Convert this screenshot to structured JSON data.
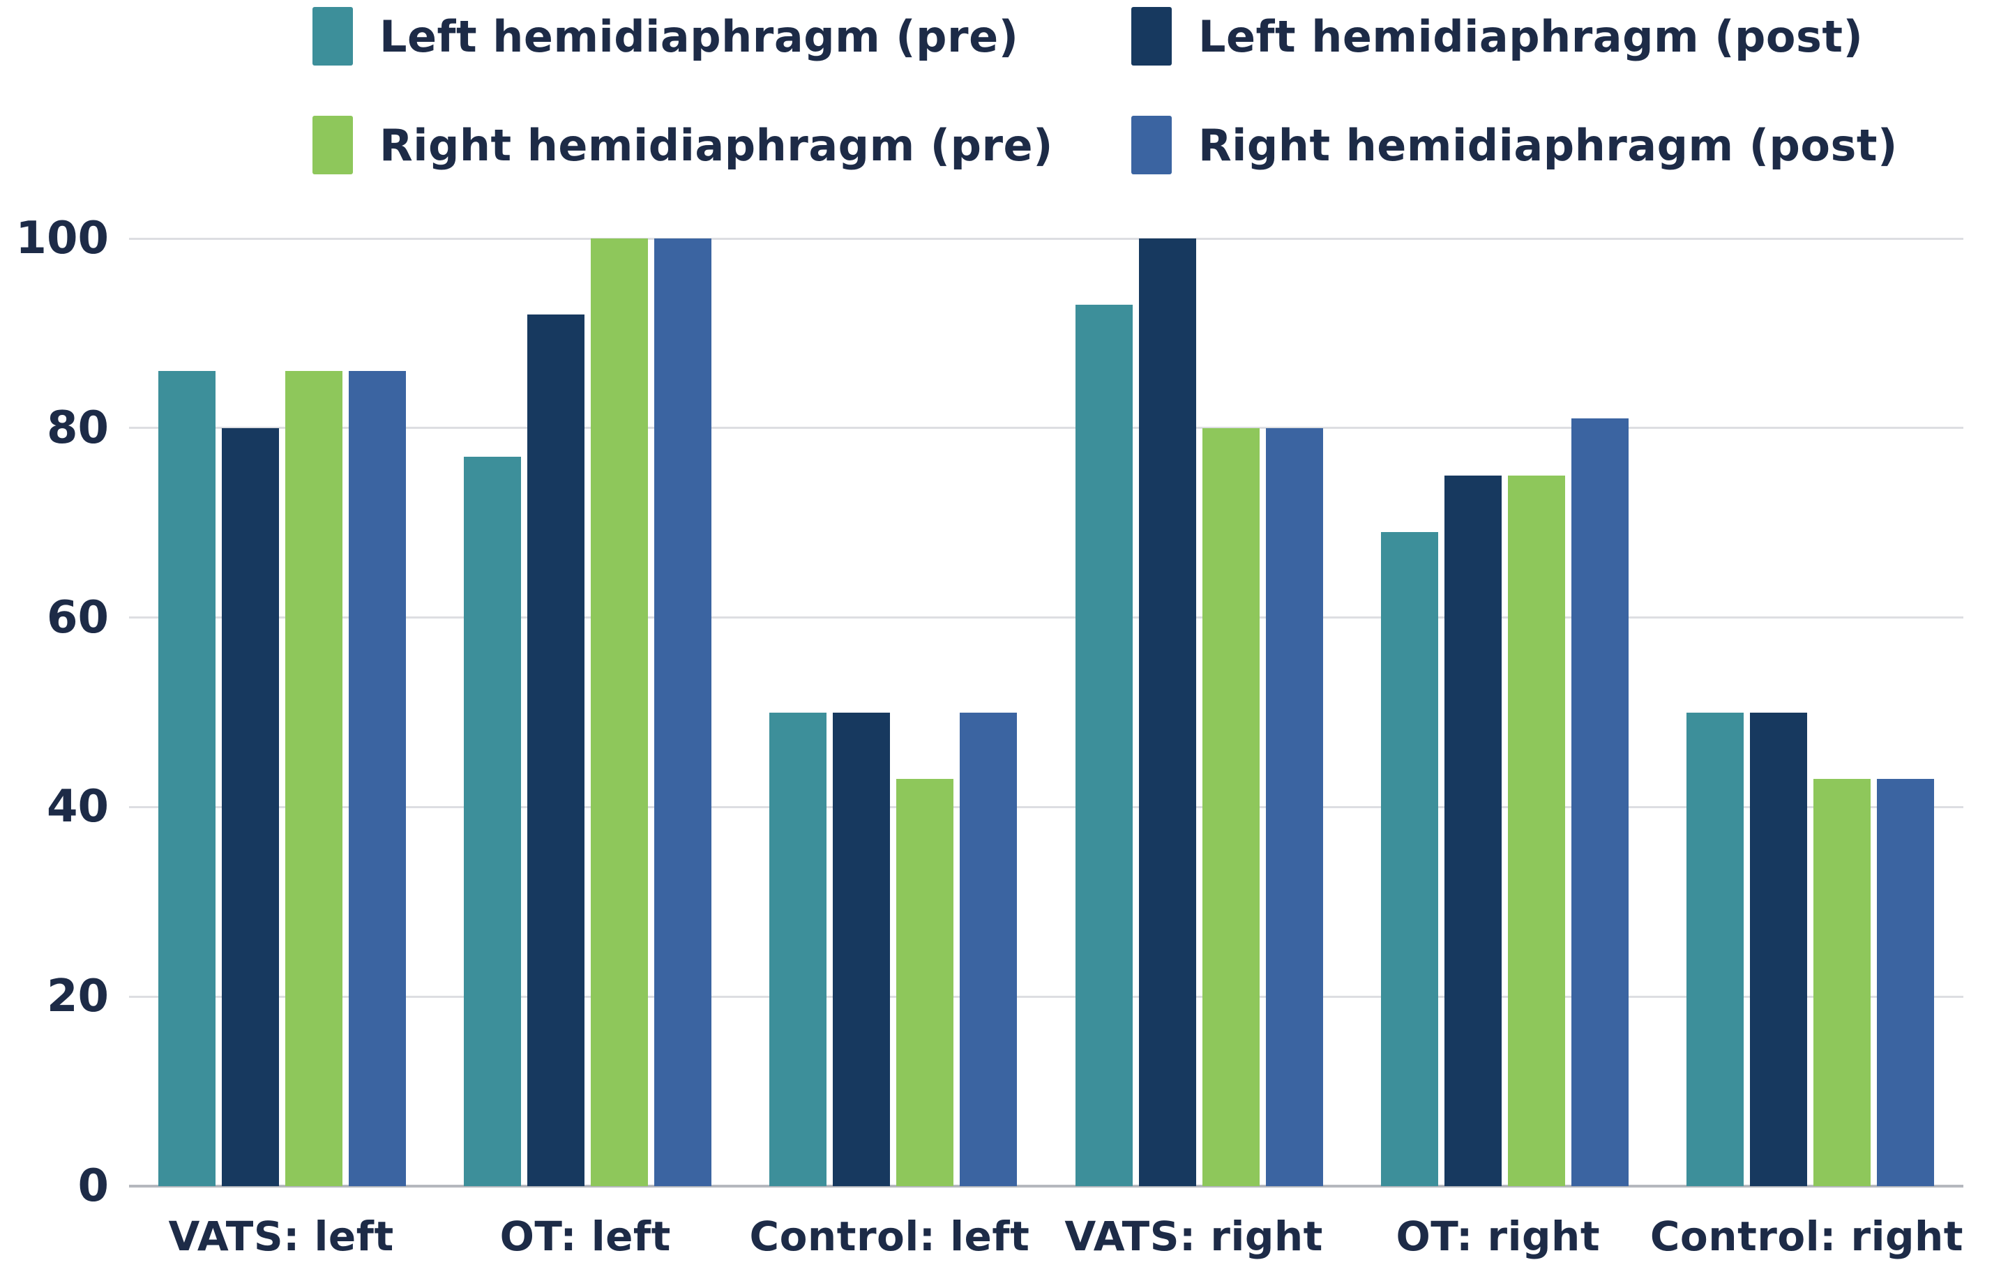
{
  "page": {
    "background": "#ffffff",
    "text_color": "#1d2b47",
    "gridline_color": "#dddee2",
    "baseline_color": "#b5b8be"
  },
  "chart_data": {
    "type": "bar",
    "title": "",
    "xlabel": "",
    "ylabel": "",
    "categories": [
      "VATS: left",
      "OT: left",
      "Control: left",
      "VATS: right",
      "OT: right",
      "Control: right"
    ],
    "series": [
      {
        "name": "Left hemidiaphragm (pre)",
        "color": "#3d8f9a",
        "values": [
          86,
          77,
          50,
          93,
          69,
          50
        ]
      },
      {
        "name": "Left hemidiaphragm (post)",
        "color": "#17395f",
        "values": [
          80,
          92,
          50,
          100,
          75,
          50
        ]
      },
      {
        "name": "Right hemidiaphragm (pre)",
        "color": "#8ec75b",
        "values": [
          86,
          100,
          43,
          80,
          75,
          43
        ]
      },
      {
        "name": "Right hemidiaphragm (post)",
        "color": "#3b64a1",
        "values": [
          86,
          100,
          50,
          80,
          81,
          43
        ]
      }
    ],
    "y_ticks": [
      0,
      20,
      40,
      60,
      80,
      100
    ],
    "ylim": [
      0,
      100
    ],
    "grid": true,
    "legend_position": "top"
  }
}
